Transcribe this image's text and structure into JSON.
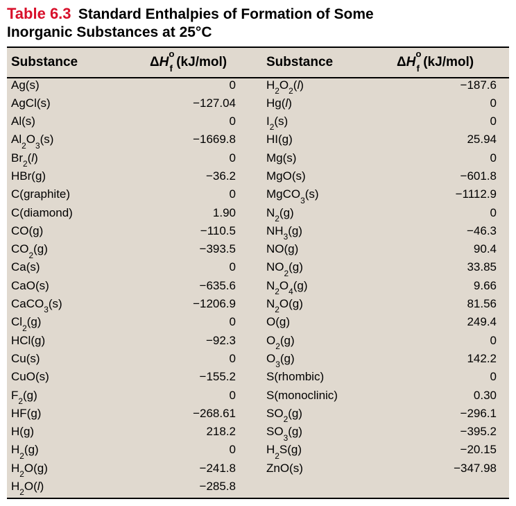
{
  "title": {
    "label": "Table 6.3",
    "text_line1": "Standard Enthalpies of Formation of Some",
    "text_line2": "Inorganic Substances at 25°C",
    "label_color": "#d80f2a",
    "text_color": "#000000"
  },
  "header": {
    "substance_label": "Substance",
    "delta_h_html": "Δ<span class=\"italic\">H</span><sup>o</sup><sub style=\"margin-left:-7px\">f</sub> (kJ/mol)"
  },
  "columns_width": {
    "left_sub": 200,
    "left_val": 168,
    "right_sub": 188,
    "right_val": 168
  },
  "style": {
    "background": "#e0d9cf",
    "rule_color": "#000000",
    "font_size_body": 17,
    "font_size_header": 19,
    "row_height": 26.3
  },
  "left": [
    {
      "sub": "Ag(s)",
      "sub_html": "Ag(s)",
      "val": "0"
    },
    {
      "sub": "AgCl(s)",
      "sub_html": "AgCl(s)",
      "val": "−127.04"
    },
    {
      "sub": "Al(s)",
      "sub_html": "Al(s)",
      "val": "0"
    },
    {
      "sub": "Al2O3(s)",
      "sub_html": "Al<sub>2</sub>O<sub>3</sub>(s)",
      "val": "−1669.8"
    },
    {
      "sub": "Br2(l)",
      "sub_html": "Br<sub>2</sub>(<span class=\"italic\">l</span>)",
      "val": "0"
    },
    {
      "sub": "HBr(g)",
      "sub_html": "HBr(g)",
      "val": "−36.2"
    },
    {
      "sub": "C(graphite)",
      "sub_html": "C(graphite)",
      "val": "0"
    },
    {
      "sub": "C(diamond)",
      "sub_html": "C(diamond)",
      "val": "1.90"
    },
    {
      "sub": "CO(g)",
      "sub_html": "CO(g)",
      "val": "−110.5"
    },
    {
      "sub": "CO2(g)",
      "sub_html": "CO<sub>2</sub>(g)",
      "val": "−393.5"
    },
    {
      "sub": "Ca(s)",
      "sub_html": "Ca(s)",
      "val": "0"
    },
    {
      "sub": "CaO(s)",
      "sub_html": "CaO(s)",
      "val": "−635.6"
    },
    {
      "sub": "CaCO3(s)",
      "sub_html": "CaCO<sub>3</sub>(s)",
      "val": "−1206.9"
    },
    {
      "sub": "Cl2(g)",
      "sub_html": "Cl<sub>2</sub>(g)",
      "val": "0"
    },
    {
      "sub": "HCl(g)",
      "sub_html": "HCl(g)",
      "val": "−92.3"
    },
    {
      "sub": "Cu(s)",
      "sub_html": "Cu(s)",
      "val": "0"
    },
    {
      "sub": "CuO(s)",
      "sub_html": "CuO(s)",
      "val": "−155.2"
    },
    {
      "sub": "F2(g)",
      "sub_html": "F<sub>2</sub>(g)",
      "val": "0"
    },
    {
      "sub": "HF(g)",
      "sub_html": "HF(g)",
      "val": "−268.61"
    },
    {
      "sub": "H(g)",
      "sub_html": "H(g)",
      "val": "218.2"
    },
    {
      "sub": "H2(g)",
      "sub_html": "H<sub>2</sub>(g)",
      "val": "0"
    },
    {
      "sub": "H2O(g)",
      "sub_html": "H<sub>2</sub>O(g)",
      "val": "−241.8"
    },
    {
      "sub": "H2O(l)",
      "sub_html": "H<sub>2</sub>O(<span class=\"italic\">l</span>)",
      "val": "−285.8"
    }
  ],
  "right": [
    {
      "sub": "H2O2(l)",
      "sub_html": "H<sub>2</sub>O<sub>2</sub>(<span class=\"italic\">l</span>)",
      "val": "−187.6"
    },
    {
      "sub": "Hg(l)",
      "sub_html": "Hg(<span class=\"italic\">l</span>)",
      "val": "0"
    },
    {
      "sub": "I2(s)",
      "sub_html": "I<sub>2</sub>(s)",
      "val": "0"
    },
    {
      "sub": "HI(g)",
      "sub_html": "HI(g)",
      "val": "25.94"
    },
    {
      "sub": "Mg(s)",
      "sub_html": "Mg(s)",
      "val": "0"
    },
    {
      "sub": "MgO(s)",
      "sub_html": "MgO(s)",
      "val": "−601.8"
    },
    {
      "sub": "MgCO3(s)",
      "sub_html": "MgCO<sub>3</sub>(s)",
      "val": "−1112.9"
    },
    {
      "sub": "N2(g)",
      "sub_html": "N<sub>2</sub>(g)",
      "val": "0"
    },
    {
      "sub": "NH3(g)",
      "sub_html": "NH<sub>3</sub>(g)",
      "val": "−46.3"
    },
    {
      "sub": "NO(g)",
      "sub_html": "NO(g)",
      "val": "90.4"
    },
    {
      "sub": "NO2(g)",
      "sub_html": "NO<sub>2</sub>(g)",
      "val": "33.85"
    },
    {
      "sub": "N2O4(g)",
      "sub_html": "N<sub>2</sub>O<sub>4</sub>(g)",
      "val": "9.66"
    },
    {
      "sub": "N2O(g)",
      "sub_html": "N<sub>2</sub>O(g)",
      "val": "81.56"
    },
    {
      "sub": "O(g)",
      "sub_html": "O(g)",
      "val": "249.4"
    },
    {
      "sub": "O2(g)",
      "sub_html": "O<sub>2</sub>(g)",
      "val": "0"
    },
    {
      "sub": "O3(g)",
      "sub_html": "O<sub>3</sub>(g)",
      "val": "142.2"
    },
    {
      "sub": "S(rhombic)",
      "sub_html": "S(rhombic)",
      "val": "0"
    },
    {
      "sub": "S(monoclinic)",
      "sub_html": "S(monoclinic)",
      "val": "0.30"
    },
    {
      "sub": "SO2(g)",
      "sub_html": "SO<sub>2</sub>(g)",
      "val": "−296.1"
    },
    {
      "sub": "SO3(g)",
      "sub_html": "SO<sub>3</sub>(g)",
      "val": "−395.2"
    },
    {
      "sub": "H2S(g)",
      "sub_html": "H<sub>2</sub>S(g)",
      "val": "−20.15"
    },
    {
      "sub": "ZnO(s)",
      "sub_html": "ZnO(s)",
      "val": "−347.98"
    }
  ]
}
